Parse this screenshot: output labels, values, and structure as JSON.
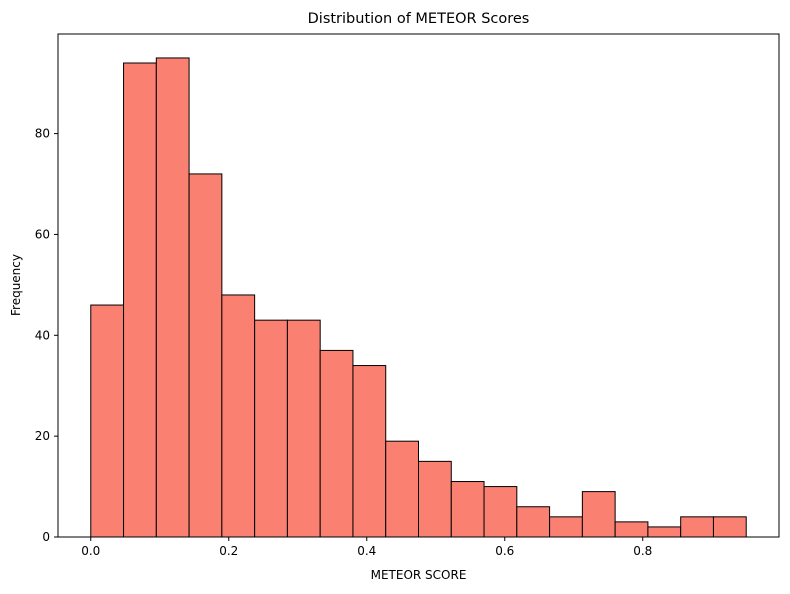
{
  "chart_data": {
    "type": "bar",
    "subtype": "histogram",
    "title": "Distribution of METEOR Scores",
    "xlabel": "METEOR SCORE",
    "ylabel": "Frequency",
    "bin_edges": [
      0.0,
      0.0475,
      0.095,
      0.1425,
      0.19,
      0.2375,
      0.285,
      0.3325,
      0.38,
      0.4275,
      0.475,
      0.5225,
      0.57,
      0.6175,
      0.665,
      0.7125,
      0.76,
      0.8075,
      0.855,
      0.9025,
      0.95
    ],
    "values": [
      46,
      94,
      95,
      72,
      48,
      43,
      43,
      37,
      34,
      19,
      15,
      11,
      10,
      6,
      4,
      9,
      3,
      2,
      4,
      4
    ],
    "xlim": [
      -0.0475,
      0.9975
    ],
    "ylim": [
      0,
      99.75
    ],
    "xticks": [
      0.0,
      0.2,
      0.4,
      0.6,
      0.8
    ],
    "xtick_labels": [
      "0.0",
      "0.2",
      "0.4",
      "0.6",
      "0.8"
    ],
    "yticks": [
      0,
      20,
      40,
      60,
      80
    ],
    "ytick_labels": [
      "0",
      "20",
      "40",
      "60",
      "80"
    ],
    "grid": false,
    "bar_color": "#fa8072",
    "edge_color": "#000000"
  }
}
